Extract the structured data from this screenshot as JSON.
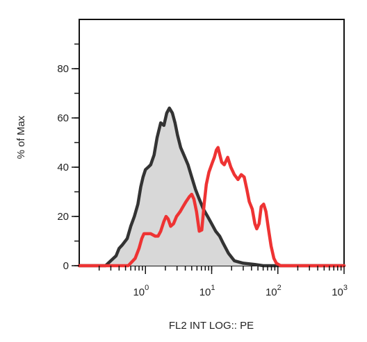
{
  "chart_data": {
    "type": "area",
    "title": "",
    "xlabel": "FL2 INT LOG:: PE",
    "ylabel": "% of Max",
    "x_scale": "log",
    "xlim": [
      0.1,
      1000
    ],
    "ylim": [
      0,
      100
    ],
    "y_ticks": [
      0,
      20,
      40,
      60,
      80
    ],
    "x_ticks": [
      {
        "value": 1,
        "base": "10",
        "exp": "0"
      },
      {
        "value": 10,
        "base": "10",
        "exp": "1"
      },
      {
        "value": 100,
        "base": "10",
        "exp": "2"
      },
      {
        "value": 1000,
        "base": "10",
        "exp": "3"
      }
    ],
    "legend": "none",
    "grid": false,
    "series": [
      {
        "style": "filled",
        "color": "#333333",
        "fill": "#d8d8d8",
        "points": [
          [
            0.1,
            0
          ],
          [
            0.25,
            0
          ],
          [
            0.3,
            2
          ],
          [
            0.36,
            4
          ],
          [
            0.4,
            7
          ],
          [
            0.45,
            8.5
          ],
          [
            0.53,
            11
          ],
          [
            0.6,
            16
          ],
          [
            0.68,
            20
          ],
          [
            0.77,
            25
          ],
          [
            0.85,
            32
          ],
          [
            0.92,
            36
          ],
          [
            1.0,
            39
          ],
          [
            1.1,
            40
          ],
          [
            1.2,
            41
          ],
          [
            1.35,
            45
          ],
          [
            1.5,
            52
          ],
          [
            1.7,
            58
          ],
          [
            1.9,
            57
          ],
          [
            2.1,
            62
          ],
          [
            2.3,
            64
          ],
          [
            2.55,
            62
          ],
          [
            2.8,
            58
          ],
          [
            3.05,
            53
          ],
          [
            3.4,
            48
          ],
          [
            3.8,
            45
          ],
          [
            4.4,
            41
          ],
          [
            5.0,
            36
          ],
          [
            5.7,
            31
          ],
          [
            6.5,
            27
          ],
          [
            7.5,
            23
          ],
          [
            8.7,
            20
          ],
          [
            10.0,
            17
          ],
          [
            11.5,
            14
          ],
          [
            13.2,
            12
          ],
          [
            15,
            9
          ],
          [
            18,
            5
          ],
          [
            22,
            2
          ],
          [
            30,
            1
          ],
          [
            45,
            0.5
          ],
          [
            60,
            0
          ],
          [
            1000,
            0
          ]
        ]
      },
      {
        "style": "line",
        "color": "#ee3333",
        "fill": "none",
        "points": [
          [
            0.1,
            0
          ],
          [
            0.55,
            0
          ],
          [
            0.7,
            3
          ],
          [
            0.8,
            7
          ],
          [
            0.88,
            11
          ],
          [
            0.95,
            13
          ],
          [
            1.05,
            13
          ],
          [
            1.2,
            13
          ],
          [
            1.4,
            12
          ],
          [
            1.55,
            12
          ],
          [
            1.7,
            14
          ],
          [
            1.9,
            18
          ],
          [
            2.05,
            20
          ],
          [
            2.2,
            19
          ],
          [
            2.4,
            16
          ],
          [
            2.65,
            17
          ],
          [
            2.95,
            20
          ],
          [
            3.35,
            22
          ],
          [
            3.7,
            24
          ],
          [
            4.1,
            26
          ],
          [
            4.6,
            28
          ],
          [
            5.0,
            29
          ],
          [
            5.4,
            27
          ],
          [
            5.9,
            22
          ],
          [
            6.5,
            14
          ],
          [
            7.1,
            14.5
          ],
          [
            7.7,
            25
          ],
          [
            8.3,
            33
          ],
          [
            9.1,
            38
          ],
          [
            10.3,
            42
          ],
          [
            11.0,
            44
          ],
          [
            11.8,
            47
          ],
          [
            12.5,
            48
          ],
          [
            13.3,
            45
          ],
          [
            14.2,
            42
          ],
          [
            15.5,
            41
          ],
          [
            17.5,
            44
          ],
          [
            19.5,
            40
          ],
          [
            22,
            37
          ],
          [
            25,
            35
          ],
          [
            28,
            37
          ],
          [
            31,
            36
          ],
          [
            34,
            31
          ],
          [
            37,
            26
          ],
          [
            41,
            23
          ],
          [
            45,
            17
          ],
          [
            48,
            15
          ],
          [
            52,
            17
          ],
          [
            56,
            24
          ],
          [
            61,
            25
          ],
          [
            66,
            22
          ],
          [
            72,
            15
          ],
          [
            79,
            8
          ],
          [
            87,
            3
          ],
          [
            95,
            1
          ],
          [
            110,
            0
          ],
          [
            1000,
            0
          ]
        ]
      }
    ]
  }
}
